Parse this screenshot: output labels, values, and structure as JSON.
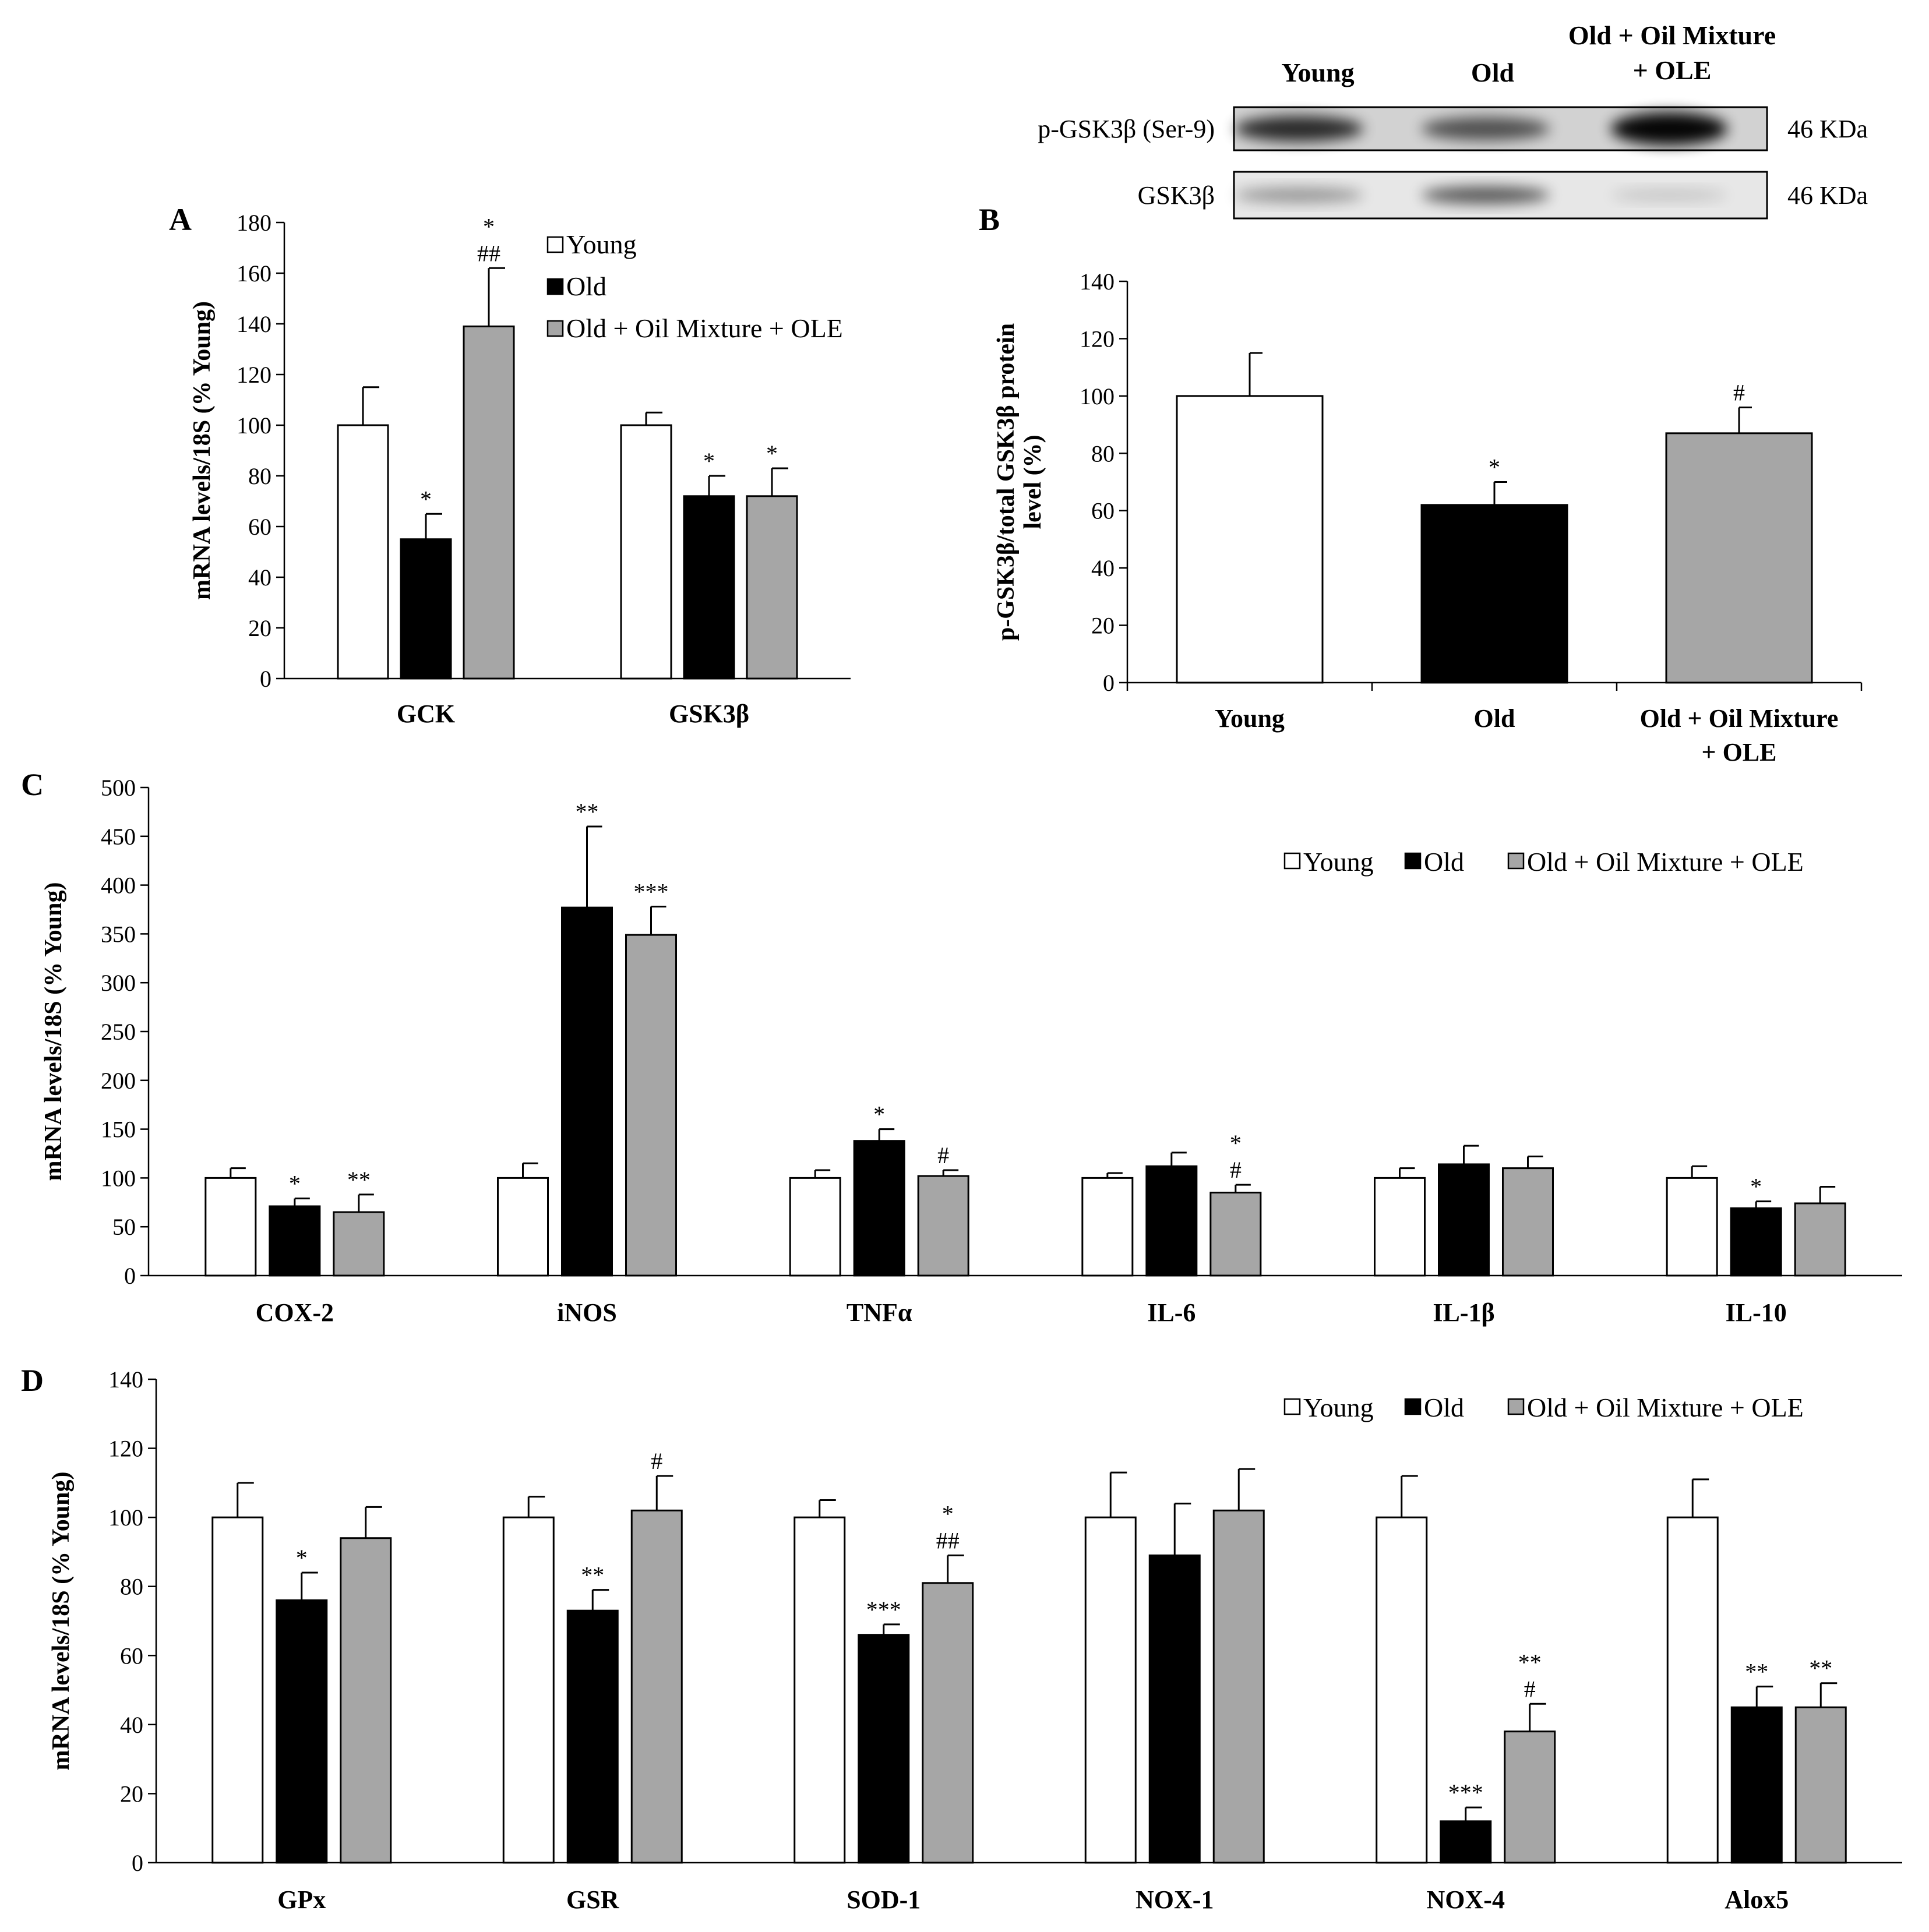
{
  "colors": {
    "young": "#ffffff",
    "old": "#000000",
    "treated": "#a6a6a6",
    "axis": "#000000"
  },
  "legend": [
    "Young",
    "Old",
    "Old + Oil Mixture + OLE"
  ],
  "western_blot": {
    "group_labels": [
      "Young",
      "Old",
      "Old + Oil Mixture",
      "+ OLE"
    ],
    "rows": [
      {
        "protein": "p-GSK3β (Ser-9)",
        "size": "46 KDa"
      },
      {
        "protein": "GSK3β",
        "size": "46 KDa"
      }
    ]
  },
  "chart_data": [
    {
      "panel": "A",
      "type": "bar",
      "ylabel": "mRNA levels/18S (% Young)",
      "ylim": [
        0,
        180
      ],
      "yticks": [
        0,
        20,
        40,
        60,
        80,
        100,
        120,
        140,
        160,
        180
      ],
      "legend_position": "top-center",
      "categories": [
        "GCK",
        "GSK3β"
      ],
      "series": [
        {
          "name": "Young",
          "values": [
            100,
            100
          ],
          "errors": [
            15,
            5
          ],
          "annotations": [
            [],
            []
          ]
        },
        {
          "name": "Old",
          "values": [
            55,
            72
          ],
          "errors": [
            10,
            8
          ],
          "annotations": [
            [
              "*"
            ],
            [
              "*"
            ]
          ]
        },
        {
          "name": "Old + Oil Mixture + OLE",
          "values": [
            139,
            72
          ],
          "errors": [
            23,
            11
          ],
          "annotations": [
            [
              "*",
              "##"
            ],
            [
              "*"
            ]
          ]
        }
      ]
    },
    {
      "panel": "B",
      "type": "bar",
      "ylabel": "p-GSK3β/total GSK3β protein level (%)",
      "ylabel_lines": [
        "p-GSK3β/total GSK3β protein",
        "level (%)"
      ],
      "ylim": [
        0,
        140
      ],
      "yticks": [
        0,
        20,
        40,
        60,
        80,
        100,
        120,
        140
      ],
      "categories": [
        "Young",
        "Old",
        "Old + Oil Mixture + OLE"
      ],
      "category_lines": [
        [
          "Young"
        ],
        [
          "Old"
        ],
        [
          "Old + Oil Mixture",
          "+ OLE"
        ]
      ],
      "values": [
        100,
        62,
        87
      ],
      "errors": [
        15,
        8,
        9
      ],
      "annotations": [
        [],
        [
          "*"
        ],
        [
          "#"
        ]
      ]
    },
    {
      "panel": "C",
      "type": "bar",
      "ylabel": "mRNA levels/18S (% Young)",
      "ylim": [
        0,
        500
      ],
      "yticks": [
        0,
        50,
        100,
        150,
        200,
        250,
        300,
        350,
        400,
        450,
        500
      ],
      "legend_position": "top-right",
      "categories": [
        "COX-2",
        "iNOS",
        "TNFα",
        "IL-6",
        "IL-1β",
        "IL-10"
      ],
      "series": [
        {
          "name": "Young",
          "values": [
            100,
            100,
            100,
            100,
            100,
            100
          ],
          "errors": [
            10,
            15,
            8,
            5,
            10,
            12
          ],
          "annotations": [
            [],
            [],
            [],
            [],
            [],
            []
          ]
        },
        {
          "name": "Old",
          "values": [
            71,
            377,
            138,
            112,
            114,
            69
          ],
          "errors": [
            8,
            83,
            12,
            14,
            19,
            7
          ],
          "annotations": [
            [
              "*"
            ],
            [
              "**"
            ],
            [
              "*"
            ],
            [],
            [],
            [
              "*"
            ]
          ]
        },
        {
          "name": "Old + Oil Mixture + OLE",
          "values": [
            65,
            349,
            102,
            85,
            110,
            74
          ],
          "errors": [
            18,
            29,
            6,
            8,
            12,
            17
          ],
          "annotations": [
            [
              "**"
            ],
            [
              "***"
            ],
            [
              "#"
            ],
            [
              "*",
              "#"
            ],
            [],
            []
          ]
        }
      ]
    },
    {
      "panel": "D",
      "type": "bar",
      "ylabel": "mRNA levels/18S (% Young)",
      "ylim": [
        0,
        140
      ],
      "yticks": [
        0,
        20,
        40,
        60,
        80,
        100,
        120,
        140
      ],
      "legend_position": "top-right",
      "categories": [
        "GPx",
        "GSR",
        "SOD-1",
        "NOX-1",
        "NOX-4",
        "Alox5"
      ],
      "series": [
        {
          "name": "Young",
          "values": [
            100,
            100,
            100,
            100,
            100,
            100
          ],
          "errors": [
            10,
            6,
            5,
            13,
            12,
            11
          ],
          "annotations": [
            [],
            [],
            [],
            [],
            [],
            []
          ]
        },
        {
          "name": "Old",
          "values": [
            76,
            73,
            66,
            89,
            12,
            45
          ],
          "errors": [
            8,
            6,
            3,
            15,
            4,
            6
          ],
          "annotations": [
            [
              "*"
            ],
            [
              "**"
            ],
            [
              "***"
            ],
            [],
            [
              "***"
            ],
            [
              "**"
            ]
          ]
        },
        {
          "name": "Old + Oil Mixture + OLE",
          "values": [
            94,
            102,
            81,
            102,
            38,
            45
          ],
          "errors": [
            9,
            10,
            8,
            12,
            8,
            7
          ],
          "annotations": [
            [],
            [
              "#"
            ],
            [
              "*",
              "##"
            ],
            [],
            [
              "**",
              "#"
            ],
            [
              "**"
            ]
          ]
        }
      ]
    }
  ]
}
